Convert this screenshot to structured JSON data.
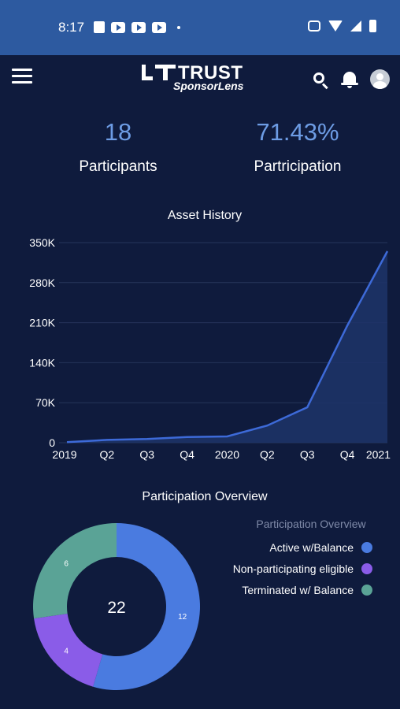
{
  "status_bar": {
    "time": "8:17",
    "left_icons": [
      "news-icon",
      "youtube-icon",
      "youtube-icon",
      "youtube-icon",
      "dot-icon"
    ],
    "right_icons": [
      "vibrate-icon",
      "wifi-icon",
      "signal-icon",
      "battery-icon"
    ],
    "background": "#2d5aa0"
  },
  "header": {
    "logo_word": "TRUST",
    "logo_sub": "SponsorLens",
    "icons": [
      "menu-icon",
      "search-icon",
      "bell-icon",
      "avatar-icon"
    ]
  },
  "stats": {
    "participants_value": "18",
    "participants_label": "Participants",
    "participation_value": "71.43%",
    "participation_label": "Partricipation"
  },
  "colors": {
    "background": "#0f1b3d",
    "accent": "#6d9ce4",
    "line": "#3d6ad8",
    "active": "#4a7be0",
    "nonparticipating": "#8a5ce8",
    "terminated": "#5aa396"
  },
  "chart_data": [
    {
      "type": "area",
      "title": "Asset History",
      "xlabel": "",
      "ylabel": "",
      "categories": [
        "2019",
        "Q2",
        "Q3",
        "Q4",
        "2020",
        "Q2",
        "Q3",
        "Q4",
        "2021"
      ],
      "values": [
        1000,
        5000,
        6500,
        10000,
        11000,
        30000,
        62000,
        205000,
        335000
      ],
      "ylim": [
        0,
        350000
      ],
      "yticks": [
        0,
        70000,
        140000,
        210000,
        280000,
        350000
      ],
      "ytick_labels": [
        "0",
        "70K",
        "140K",
        "210K",
        "280K",
        "350K"
      ],
      "grid": true
    },
    {
      "type": "pie",
      "title": "Participation Overview",
      "legend_title": "Participation Overview",
      "center_label": "22",
      "legend_position": "right",
      "slices": [
        {
          "label": "Active w/Balance",
          "value": 12,
          "color": "#4a7be0"
        },
        {
          "label": "Non-participating eligible",
          "value": 4,
          "color": "#8a5ce8"
        },
        {
          "label": "Terminated w/ Balance",
          "value": 6,
          "color": "#5aa396"
        }
      ]
    }
  ]
}
